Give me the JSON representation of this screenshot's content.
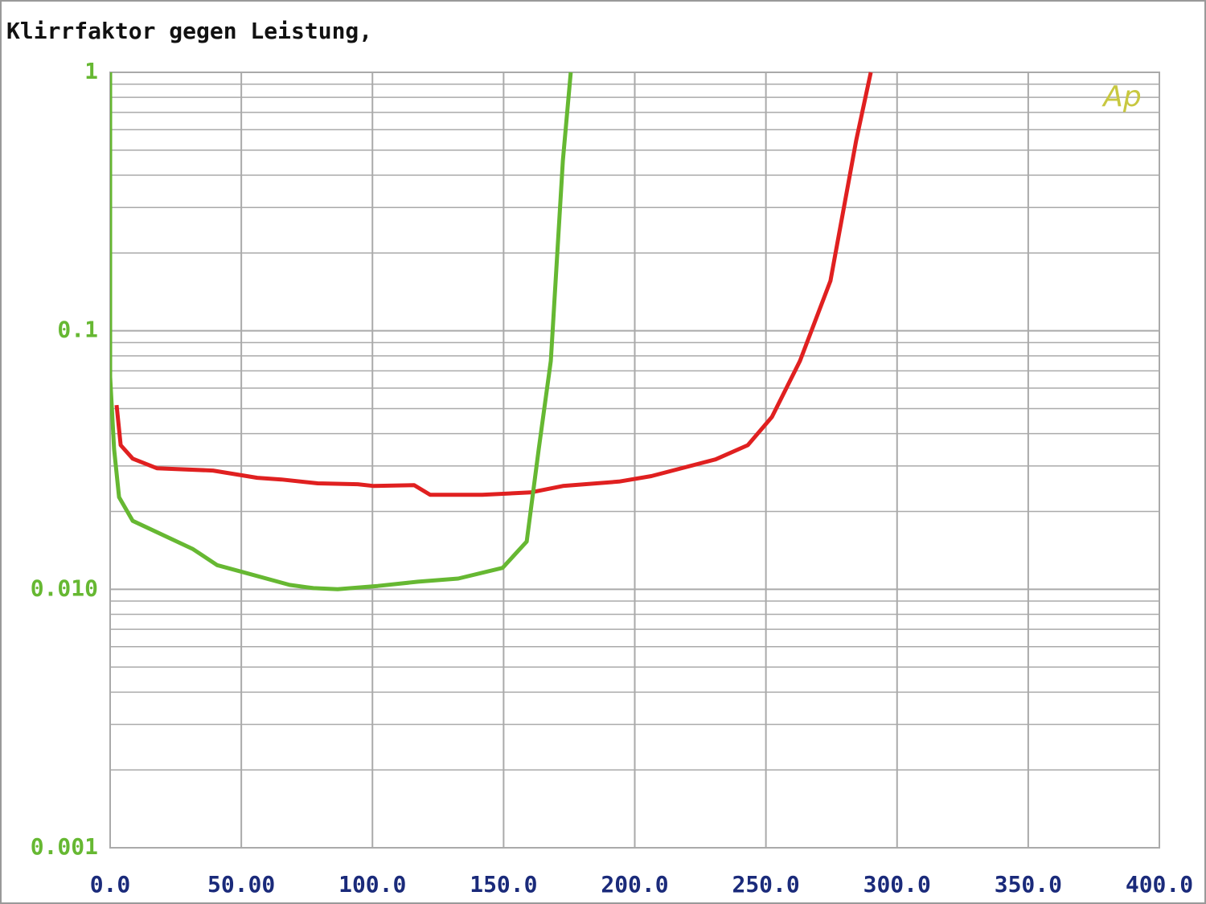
{
  "chart_data": {
    "type": "line",
    "title": "Klirrfaktor gegen Leistung,",
    "logo": "Ap",
    "log_y": true,
    "grid": true,
    "minor_grid": true,
    "xlim": [
      0,
      400
    ],
    "xticks": [
      {
        "value": 0,
        "label": "0.0"
      },
      {
        "value": 50,
        "label": "50.00"
      },
      {
        "value": 100,
        "label": "100.0"
      },
      {
        "value": 150,
        "label": "150.0"
      },
      {
        "value": 200,
        "label": "200.0"
      },
      {
        "value": 250,
        "label": "250.0"
      },
      {
        "value": 300,
        "label": "300.0"
      },
      {
        "value": 350,
        "label": "350.0"
      },
      {
        "value": 400,
        "label": "400.0"
      }
    ],
    "ylim": [
      0.001,
      1
    ],
    "yticks": [
      0.001,
      {
        "value": 0.01,
        "label": "0.010"
      },
      0.1,
      1
    ],
    "series": [
      {
        "color": "#e02020",
        "x": [
          2.45,
          4.0,
          8.6,
          17.8,
          39.2,
          56.1,
          65.3,
          79.1,
          94.4,
          100.5,
          115.9,
          122,
          141.9,
          160.3,
          172.6,
          194,
          206.3,
          230.8,
          243.1,
          252.3,
          263,
          274.6,
          284.4,
          290
        ],
        "values": [
          0.0516,
          0.0361,
          0.032,
          0.0294,
          0.0288,
          0.027,
          0.0266,
          0.0257,
          0.0255,
          0.0251,
          0.0253,
          0.0232,
          0.0232,
          0.0237,
          0.0251,
          0.0261,
          0.0274,
          0.0318,
          0.0361,
          0.0464,
          0.0765,
          0.156,
          0.545,
          1.0
        ]
      },
      {
        "color": "#66b832",
        "x": [
          0,
          0,
          1.5,
          3.4,
          8.6,
          31.6,
          40.8,
          50,
          68.4,
          77.5,
          86.7,
          102,
          117.4,
          132.7,
          149.6,
          158.8,
          163.4,
          168,
          172.6,
          175.6
        ],
        "values": [
          1.0,
          0.0663,
          0.0349,
          0.0227,
          0.0184,
          0.0143,
          0.0124,
          0.0117,
          0.0104,
          0.0101,
          0.01,
          0.0103,
          0.0107,
          0.011,
          0.0121,
          0.0153,
          0.0349,
          0.0765,
          0.456,
          1.0
        ]
      }
    ]
  }
}
